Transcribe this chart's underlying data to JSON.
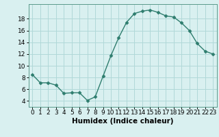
{
  "x": [
    0,
    1,
    2,
    3,
    4,
    5,
    6,
    7,
    8,
    9,
    10,
    11,
    12,
    13,
    14,
    15,
    16,
    17,
    18,
    19,
    20,
    21,
    22,
    23
  ],
  "y": [
    8.5,
    7.1,
    7.1,
    6.7,
    5.3,
    5.4,
    5.4,
    4.1,
    4.7,
    8.2,
    11.7,
    14.8,
    17.4,
    18.9,
    19.3,
    19.5,
    19.1,
    18.5,
    18.3,
    17.3,
    16.0,
    13.8,
    12.5,
    12.0
  ],
  "line_color": "#2e7d6e",
  "marker": "D",
  "marker_size": 2.5,
  "bg_color": "#d9f0f0",
  "grid_color": "#b0d8d8",
  "xlabel": "Humidex (Indice chaleur)",
  "xlabel_fontsize": 7.5,
  "xlim": [
    -0.5,
    23.5
  ],
  "ylim": [
    3,
    20.5
  ],
  "yticks": [
    4,
    6,
    8,
    10,
    12,
    14,
    16,
    18
  ],
  "xticks": [
    0,
    1,
    2,
    3,
    4,
    5,
    6,
    7,
    8,
    9,
    10,
    11,
    12,
    13,
    14,
    15,
    16,
    17,
    18,
    19,
    20,
    21,
    22,
    23
  ],
  "tick_fontsize": 6.5,
  "linewidth": 1.0,
  "spine_color": "#5a9a8a"
}
